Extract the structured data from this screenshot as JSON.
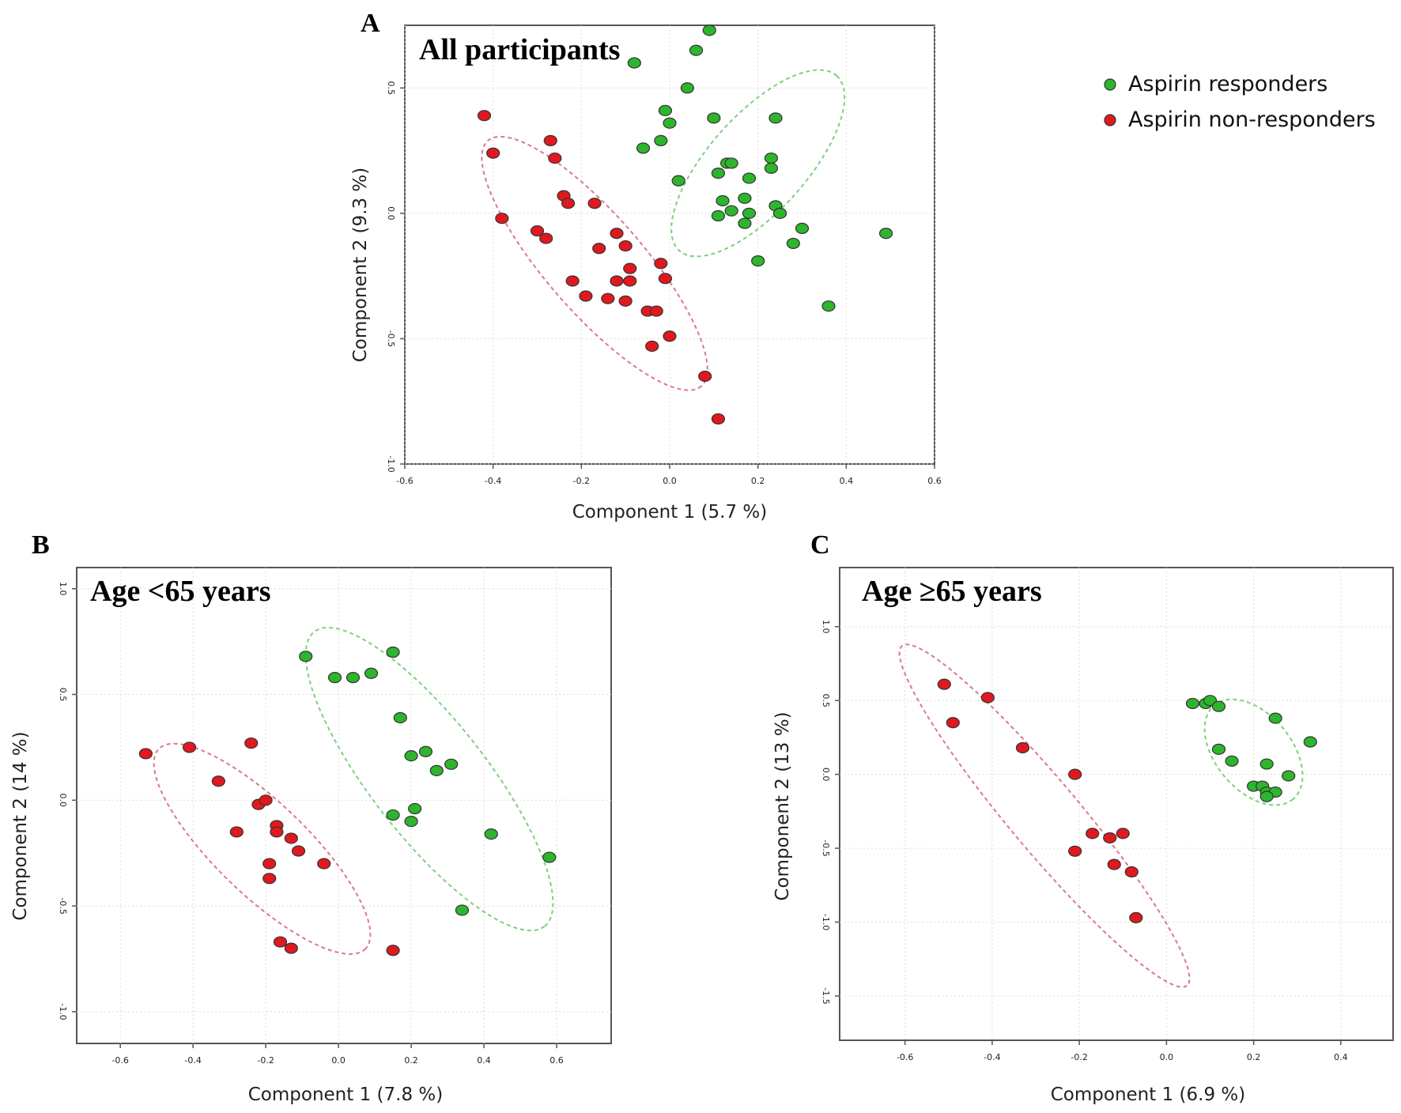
{
  "chart_data": [
    {
      "type": "scatter",
      "panel": "A",
      "title": "All participants",
      "xlabel": "Component 1 (5.7 %)",
      "ylabel": "Component 2 (9.3 %)",
      "xlim": [
        -0.6,
        0.6
      ],
      "ylim": [
        -1.0,
        0.75
      ],
      "xticks": [
        "-0.6",
        "-0.4",
        "-0.2",
        "0.0",
        "0.2",
        "0.4",
        "0.6"
      ],
      "yticks": [
        "-1.0",
        "-0.5",
        "0.0",
        "0.5"
      ],
      "series": [
        {
          "name": "Aspirin responders",
          "color": "#2db52d",
          "points": [
            [
              0.09,
              0.73
            ],
            [
              -0.08,
              0.6
            ],
            [
              0.06,
              0.65
            ],
            [
              0.04,
              0.5
            ],
            [
              -0.01,
              0.41
            ],
            [
              0.0,
              0.36
            ],
            [
              0.1,
              0.38
            ],
            [
              0.24,
              0.38
            ],
            [
              -0.06,
              0.26
            ],
            [
              -0.02,
              0.29
            ],
            [
              0.02,
              0.13
            ],
            [
              0.13,
              0.2
            ],
            [
              0.14,
              0.2
            ],
            [
              0.23,
              0.22
            ],
            [
              0.23,
              0.18
            ],
            [
              0.11,
              0.16
            ],
            [
              0.18,
              0.14
            ],
            [
              0.12,
              0.05
            ],
            [
              0.17,
              0.06
            ],
            [
              0.14,
              0.01
            ],
            [
              0.11,
              -0.01
            ],
            [
              0.18,
              0.0
            ],
            [
              0.17,
              -0.04
            ],
            [
              0.24,
              0.03
            ],
            [
              0.25,
              0.0
            ],
            [
              0.3,
              -0.06
            ],
            [
              0.28,
              -0.12
            ],
            [
              0.49,
              -0.08
            ],
            [
              0.2,
              -0.19
            ],
            [
              0.36,
              -0.37
            ]
          ],
          "ellipse": {
            "cx": 0.2,
            "cy": 0.2,
            "rx": 0.34,
            "ry": 0.14,
            "angle_deg": -48
          }
        },
        {
          "name": "Aspirin non-responders",
          "color": "#e0191e",
          "points": [
            [
              -0.42,
              0.39
            ],
            [
              -0.4,
              0.24
            ],
            [
              -0.27,
              0.29
            ],
            [
              -0.26,
              0.22
            ],
            [
              -0.38,
              -0.02
            ],
            [
              -0.24,
              0.07
            ],
            [
              -0.23,
              0.04
            ],
            [
              -0.17,
              0.04
            ],
            [
              -0.3,
              -0.07
            ],
            [
              -0.28,
              -0.1
            ],
            [
              -0.12,
              -0.08
            ],
            [
              -0.1,
              -0.13
            ],
            [
              -0.16,
              -0.14
            ],
            [
              -0.02,
              -0.2
            ],
            [
              -0.09,
              -0.22
            ],
            [
              -0.22,
              -0.27
            ],
            [
              -0.12,
              -0.27
            ],
            [
              -0.09,
              -0.27
            ],
            [
              -0.01,
              -0.26
            ],
            [
              -0.19,
              -0.33
            ],
            [
              -0.14,
              -0.34
            ],
            [
              -0.1,
              -0.35
            ],
            [
              -0.05,
              -0.39
            ],
            [
              -0.03,
              -0.39
            ],
            [
              0.0,
              -0.49
            ],
            [
              -0.04,
              -0.53
            ],
            [
              0.08,
              -0.65
            ],
            [
              0.11,
              -0.82
            ]
          ],
          "ellipse": {
            "cx": -0.17,
            "cy": -0.2,
            "rx": 0.47,
            "ry": 0.14,
            "angle_deg": 49
          }
        }
      ]
    },
    {
      "type": "scatter",
      "panel": "B",
      "title": "Age <65 years",
      "xlabel": "Component 1 (7.8 %)",
      "ylabel": "Component 2 (14 %)",
      "xlim": [
        -0.72,
        0.75
      ],
      "ylim": [
        -1.15,
        1.1
      ],
      "xticks": [
        "-0.6",
        "-0.4",
        "-0.2",
        "0.0",
        "0.2",
        "0.4",
        "0.6"
      ],
      "yticks": [
        "-1.0",
        "-0.5",
        "0.0",
        "0.5",
        "1.0"
      ],
      "series": [
        {
          "name": "Aspirin responders",
          "color": "#2db52d",
          "points": [
            [
              -0.09,
              0.68
            ],
            [
              -0.01,
              0.58
            ],
            [
              0.04,
              0.58
            ],
            [
              0.09,
              0.6
            ],
            [
              0.15,
              0.7
            ],
            [
              0.17,
              0.39
            ],
            [
              0.2,
              0.21
            ],
            [
              0.24,
              0.23
            ],
            [
              0.27,
              0.14
            ],
            [
              0.31,
              0.17
            ],
            [
              0.15,
              -0.07
            ],
            [
              0.21,
              -0.04
            ],
            [
              0.2,
              -0.1
            ],
            [
              0.42,
              -0.16
            ],
            [
              0.58,
              -0.27
            ],
            [
              0.34,
              -0.52
            ]
          ],
          "ellipse": {
            "cx": 0.25,
            "cy": 0.1,
            "rx": 0.65,
            "ry": 0.2,
            "angle_deg": 52
          }
        },
        {
          "name": "Aspirin non-responders",
          "color": "#e0191e",
          "points": [
            [
              -0.53,
              0.22
            ],
            [
              -0.41,
              0.25
            ],
            [
              -0.24,
              0.27
            ],
            [
              -0.33,
              0.09
            ],
            [
              -0.22,
              -0.02
            ],
            [
              -0.2,
              0.0
            ],
            [
              -0.28,
              -0.15
            ],
            [
              -0.17,
              -0.12
            ],
            [
              -0.17,
              -0.15
            ],
            [
              -0.13,
              -0.18
            ],
            [
              -0.11,
              -0.24
            ],
            [
              -0.04,
              -0.3
            ],
            [
              -0.19,
              -0.3
            ],
            [
              -0.19,
              -0.37
            ],
            [
              -0.16,
              -0.67
            ],
            [
              -0.13,
              -0.7
            ],
            [
              0.15,
              -0.71
            ]
          ],
          "ellipse": {
            "cx": -0.21,
            "cy": -0.23,
            "rx": 0.5,
            "ry": 0.16,
            "angle_deg": 44
          }
        }
      ]
    },
    {
      "type": "scatter",
      "panel": "C",
      "title": "Age ≥65 years",
      "xlabel": "Component 1 (6.9 %)",
      "ylabel": "Component 2 (13 %)",
      "xlim": [
        -0.75,
        0.52
      ],
      "ylim": [
        -1.8,
        1.4
      ],
      "xticks": [
        "-0.6",
        "-0.4",
        "-0.2",
        "0.0",
        "0.2",
        "0.4"
      ],
      "yticks": [
        "-1.5",
        "-1.0",
        "-0.5",
        "0.0",
        "0.5",
        "1.0"
      ],
      "series": [
        {
          "name": "Aspirin responders",
          "color": "#2db52d",
          "points": [
            [
              0.06,
              0.48
            ],
            [
              0.09,
              0.48
            ],
            [
              0.1,
              0.5
            ],
            [
              0.12,
              0.46
            ],
            [
              0.25,
              0.38
            ],
            [
              0.33,
              0.22
            ],
            [
              0.12,
              0.17
            ],
            [
              0.15,
              0.09
            ],
            [
              0.23,
              0.07
            ],
            [
              0.28,
              -0.01
            ],
            [
              0.2,
              -0.08
            ],
            [
              0.22,
              -0.08
            ],
            [
              0.23,
              -0.12
            ],
            [
              0.25,
              -0.12
            ],
            [
              0.23,
              -0.15
            ]
          ],
          "ellipse": {
            "cx": 0.2,
            "cy": 0.15,
            "rx": 0.21,
            "ry": 0.13,
            "angle_deg": 50
          }
        },
        {
          "name": "Aspirin non-responders",
          "color": "#e0191e",
          "points": [
            [
              -0.51,
              0.61
            ],
            [
              -0.49,
              0.35
            ],
            [
              -0.41,
              0.52
            ],
            [
              -0.33,
              0.18
            ],
            [
              -0.21,
              0.0
            ],
            [
              -0.17,
              -0.4
            ],
            [
              -0.13,
              -0.43
            ],
            [
              -0.1,
              -0.4
            ],
            [
              -0.21,
              -0.52
            ],
            [
              -0.12,
              -0.61
            ],
            [
              -0.08,
              -0.66
            ],
            [
              -0.07,
              -0.97
            ]
          ],
          "ellipse": {
            "cx": -0.28,
            "cy": -0.28,
            "rx": 0.76,
            "ry": 0.12,
            "angle_deg": 50
          }
        }
      ]
    }
  ],
  "legend": {
    "items": [
      {
        "label": "Aspirin responders",
        "color": "#2db52d"
      },
      {
        "label": "Aspirin non-responders",
        "color": "#e0191e"
      }
    ]
  },
  "colors": {
    "responder_ellipse": "#7fcf7f",
    "nonresponder_ellipse": "#d97a8a"
  }
}
